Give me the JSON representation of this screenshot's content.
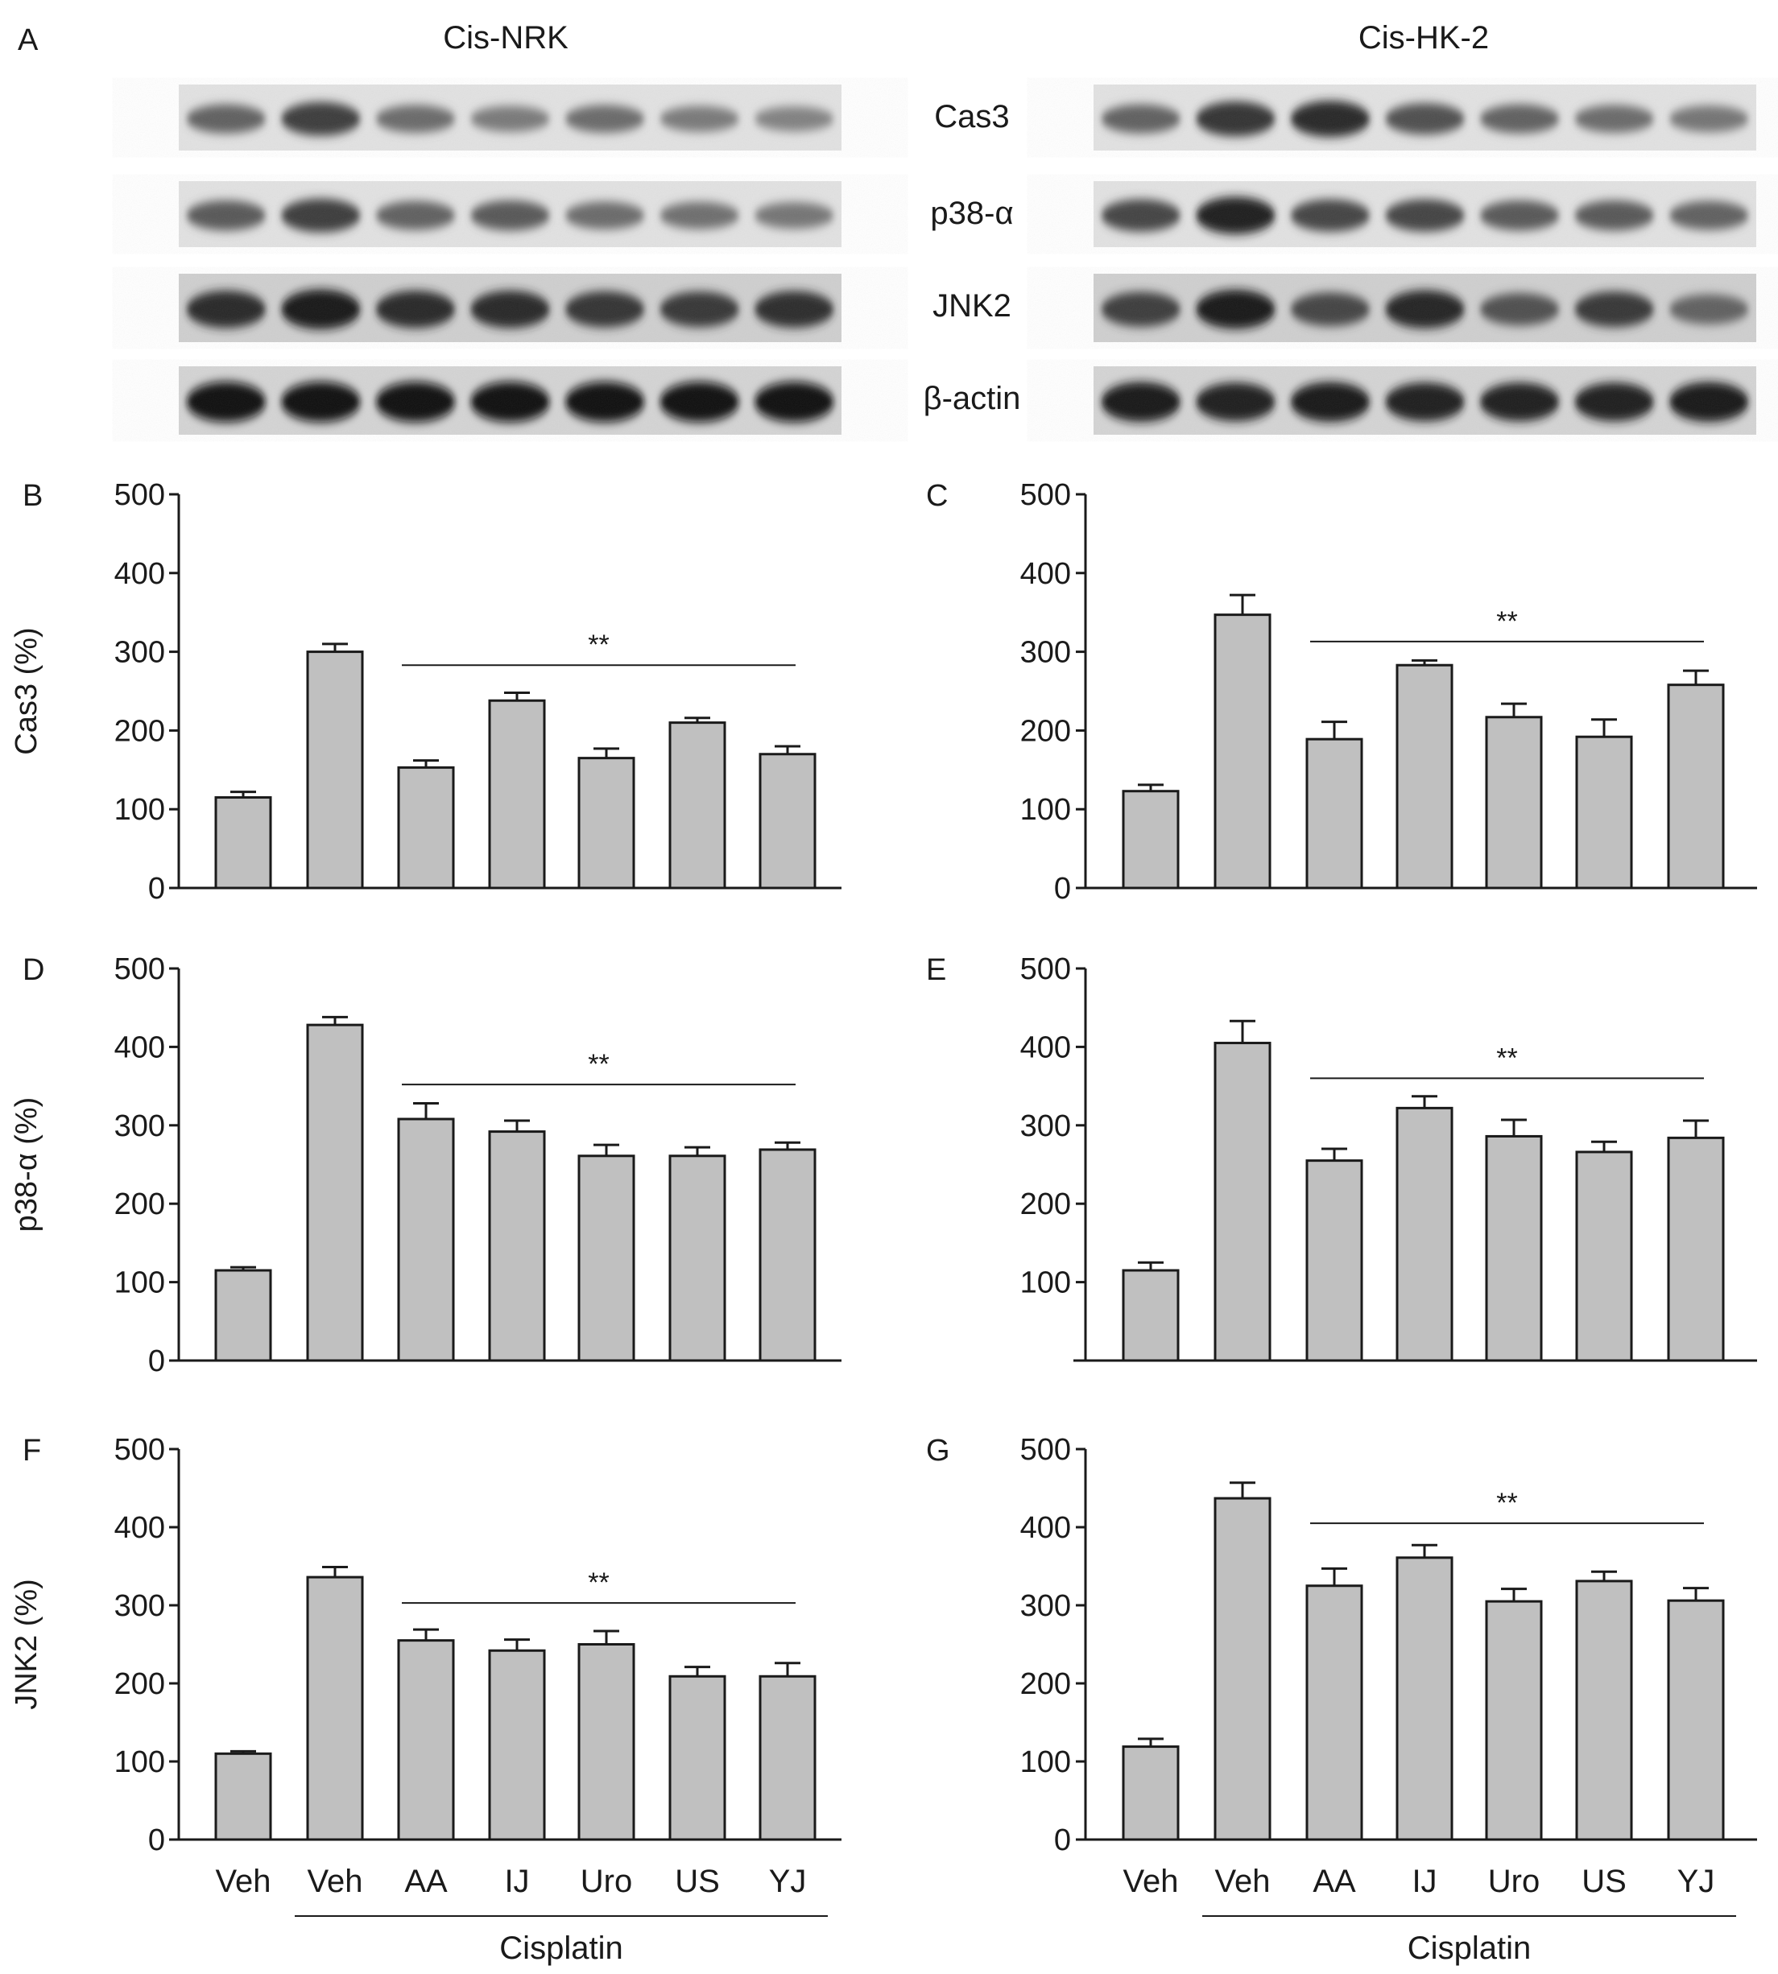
{
  "figure": {
    "panel_a_letter": "A",
    "blot_titles": [
      "Cis-NRK",
      "Cis-HK-2"
    ],
    "blot_row_labels": [
      "Cas3",
      "p38-α",
      "JNK2",
      "β-actin"
    ],
    "bar_color": "#c0c0c0",
    "axis_color": "#1a1a1a",
    "significance_mark": "**"
  },
  "chart_data": [
    {
      "panel": "B",
      "type": "bar",
      "ylabel": "Cas3 (%)",
      "ylim": [
        0,
        500
      ],
      "yticks": [
        "0",
        "100",
        "200",
        "300",
        "400",
        "500"
      ],
      "categories": [
        "Veh",
        "Veh",
        "AA",
        "IJ",
        "Uro",
        "US",
        "YJ"
      ],
      "values": [
        115,
        300,
        153,
        238,
        165,
        210,
        170
      ],
      "errors": [
        7,
        10,
        9,
        10,
        12,
        6,
        10
      ],
      "significance": {
        "label": "**",
        "from": 2,
        "to": 6,
        "y": 283
      },
      "group_label": "",
      "show_xticks": false
    },
    {
      "panel": "C",
      "type": "bar",
      "ylabel": "",
      "ylim": [
        0,
        500
      ],
      "yticks": [
        "0",
        "100",
        "200",
        "300",
        "400",
        "500"
      ],
      "categories": [
        "Veh",
        "Veh",
        "AA",
        "IJ",
        "Uro",
        "US",
        "YJ"
      ],
      "values": [
        123,
        347,
        189,
        283,
        217,
        192,
        258
      ],
      "errors": [
        8,
        25,
        22,
        6,
        17,
        22,
        18
      ],
      "significance": {
        "label": "**",
        "from": 2,
        "to": 6,
        "y": 313
      },
      "group_label": "",
      "show_xticks": false
    },
    {
      "panel": "D",
      "type": "bar",
      "ylabel": "p38-α (%)",
      "ylim": [
        0,
        500
      ],
      "yticks": [
        "0",
        "100",
        "200",
        "300",
        "400",
        "500"
      ],
      "categories": [
        "Veh",
        "Veh",
        "AA",
        "IJ",
        "Uro",
        "US",
        "YJ"
      ],
      "values": [
        115,
        428,
        308,
        292,
        261,
        261,
        269
      ],
      "errors": [
        4,
        10,
        20,
        14,
        14,
        11,
        9
      ],
      "significance": {
        "label": "**",
        "from": 2,
        "to": 6,
        "y": 352
      },
      "group_label": "",
      "show_xticks": false
    },
    {
      "panel": "E",
      "type": "bar",
      "ylabel": "",
      "ylim": [
        0,
        500
      ],
      "yticks": [
        "100",
        "200",
        "300",
        "400",
        "500"
      ],
      "categories": [
        "Veh",
        "Veh",
        "AA",
        "IJ",
        "Uro",
        "US",
        "YJ"
      ],
      "values": [
        115,
        405,
        255,
        322,
        286,
        266,
        284
      ],
      "errors": [
        10,
        28,
        15,
        15,
        21,
        13,
        22
      ],
      "significance": {
        "label": "**",
        "from": 2,
        "to": 6,
        "y": 360
      },
      "group_label": "",
      "show_xticks": false
    },
    {
      "panel": "F",
      "type": "bar",
      "ylabel": "JNK2 (%)",
      "ylim": [
        0,
        500
      ],
      "yticks": [
        "0",
        "100",
        "200",
        "300",
        "400",
        "500"
      ],
      "categories": [
        "Veh",
        "Veh",
        "AA",
        "IJ",
        "Uro",
        "US",
        "YJ"
      ],
      "values": [
        110,
        336,
        255,
        242,
        250,
        209,
        209
      ],
      "errors": [
        3,
        13,
        14,
        14,
        17,
        12,
        17
      ],
      "significance": {
        "label": "**",
        "from": 2,
        "to": 6,
        "y": 303
      },
      "group_label": "Cisplatin",
      "show_xticks": true
    },
    {
      "panel": "G",
      "type": "bar",
      "ylabel": "",
      "ylim": [
        0,
        500
      ],
      "yticks": [
        "0",
        "100",
        "200",
        "300",
        "400",
        "500"
      ],
      "categories": [
        "Veh",
        "Veh",
        "AA",
        "IJ",
        "Uro",
        "US",
        "YJ"
      ],
      "values": [
        119,
        437,
        325,
        361,
        305,
        331,
        306
      ],
      "errors": [
        10,
        20,
        22,
        16,
        16,
        12,
        16
      ],
      "significance": {
        "label": "**",
        "from": 2,
        "to": 6,
        "y": 405
      },
      "group_label": "Cisplatin",
      "show_xticks": true
    }
  ]
}
